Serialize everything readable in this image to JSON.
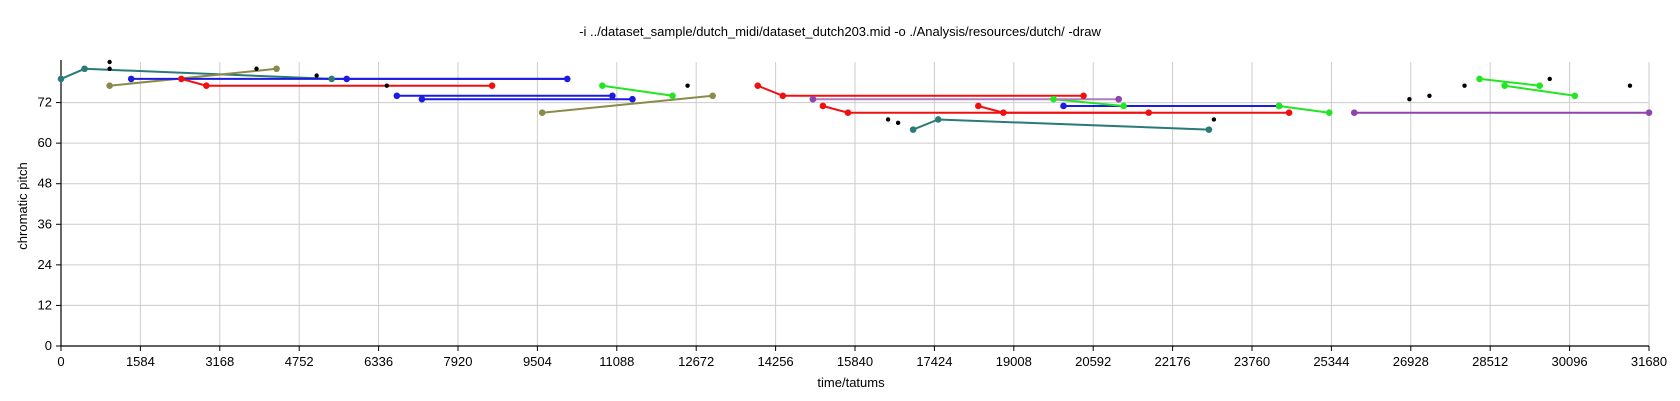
{
  "chart_data": {
    "type": "line",
    "title": "-i ../dataset_sample/dutch_midi/dataset_dutch203.mid -o ./Analysis/resources/dutch/ -draw",
    "xlabel": "time/tatums",
    "ylabel": "chromatic pitch",
    "xlim": [
      0,
      31680
    ],
    "ylim": [
      0,
      84
    ],
    "grid": true,
    "x_ticks": [
      "0",
      "1584",
      "3168",
      "4752",
      "6336",
      "7920",
      "9504",
      "11088",
      "12672",
      "14256",
      "15840",
      "17424",
      "19008",
      "20592",
      "22176",
      "23760",
      "25344",
      "26928",
      "28512",
      "30096",
      "31680"
    ],
    "y_ticks": [
      "0",
      "12",
      "24",
      "36",
      "48",
      "60",
      "72"
    ],
    "colors": {
      "teal": "#2a7a78",
      "olive": "#8c8a48",
      "blue": "#1c1ce0",
      "red": "#f01010",
      "green": "#22e622",
      "purple": "#8e44ad",
      "lilac": "#b07cc0",
      "black": "#000000"
    },
    "series": [
      {
        "color": "teal",
        "points": [
          [
            0,
            79
          ],
          [
            470,
            82
          ],
          [
            5400,
            79
          ]
        ]
      },
      {
        "color": "teal",
        "points": [
          [
            17000,
            64
          ],
          [
            17500,
            67
          ],
          [
            22900,
            64
          ]
        ]
      },
      {
        "color": "olive",
        "points": [
          [
            970,
            77
          ],
          [
            4300,
            82
          ]
        ]
      },
      {
        "color": "olive",
        "points": [
          [
            9600,
            69
          ],
          [
            13000,
            74
          ]
        ]
      },
      {
        "color": "blue",
        "points": [
          [
            1400,
            79
          ],
          [
            5700,
            79
          ],
          [
            10100,
            79
          ]
        ]
      },
      {
        "color": "blue",
        "points": [
          [
            6700,
            74
          ],
          [
            11000,
            74
          ]
        ]
      },
      {
        "color": "blue",
        "points": [
          [
            7200,
            73
          ],
          [
            11400,
            73
          ]
        ]
      },
      {
        "color": "blue",
        "points": [
          [
            20000,
            71
          ],
          [
            24300,
            71
          ]
        ]
      },
      {
        "color": "red",
        "points": [
          [
            2400,
            79
          ],
          [
            2900,
            77
          ],
          [
            8600,
            77
          ]
        ]
      },
      {
        "color": "red",
        "points": [
          [
            13900,
            77
          ],
          [
            14400,
            74
          ],
          [
            20400,
            74
          ]
        ]
      },
      {
        "color": "red",
        "points": [
          [
            15200,
            71
          ],
          [
            15700,
            69
          ],
          [
            21700,
            69
          ]
        ]
      },
      {
        "color": "red",
        "points": [
          [
            18300,
            71
          ],
          [
            18800,
            69
          ],
          [
            24500,
            69
          ]
        ]
      },
      {
        "color": "green",
        "points": [
          [
            10800,
            77
          ],
          [
            12200,
            74
          ]
        ]
      },
      {
        "color": "green",
        "points": [
          [
            19800,
            73
          ],
          [
            21200,
            71
          ]
        ]
      },
      {
        "color": "green",
        "points": [
          [
            24300,
            71
          ],
          [
            25300,
            69
          ]
        ]
      },
      {
        "color": "green",
        "points": [
          [
            28300,
            79
          ],
          [
            29500,
            77
          ]
        ]
      },
      {
        "color": "green",
        "points": [
          [
            28800,
            77
          ],
          [
            30200,
            74
          ]
        ]
      },
      {
        "color": "lilac",
        "points": [
          [
            15000,
            73
          ],
          [
            21100,
            73
          ]
        ]
      },
      {
        "color": "purple",
        "points": [
          [
            25800,
            69
          ],
          [
            31680,
            69
          ]
        ]
      }
    ],
    "line_only_series": [
      {
        "color": "blue",
        "points": [
          [
            5300,
            79
          ],
          [
            10100,
            79
          ]
        ]
      }
    ],
    "scatter": [
      {
        "color": "black",
        "points": [
          [
            970,
            84
          ],
          [
            970,
            82
          ],
          [
            3900,
            82
          ],
          [
            5100,
            80
          ],
          [
            6500,
            77
          ],
          [
            12500,
            77
          ],
          [
            16500,
            67
          ],
          [
            16700,
            66
          ],
          [
            23000,
            67
          ],
          [
            26900,
            73
          ],
          [
            27300,
            74
          ],
          [
            28000,
            77
          ],
          [
            29700,
            79
          ],
          [
            31300,
            77
          ]
        ]
      }
    ],
    "extra_dots": [
      {
        "color": "purple",
        "points": [
          [
            15000,
            73
          ],
          [
            21100,
            73
          ]
        ]
      }
    ]
  }
}
